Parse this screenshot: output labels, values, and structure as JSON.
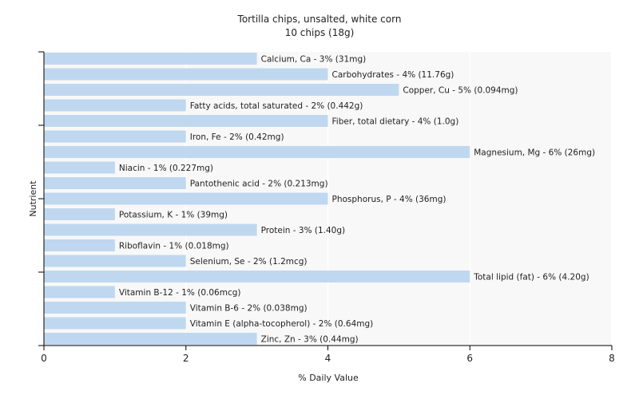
{
  "chart_data": {
    "type": "bar",
    "orientation": "horizontal",
    "title": "Tortilla chips, unsalted, white corn",
    "subtitle": "10 chips (18g)",
    "xlabel": "% Daily Value",
    "ylabel": "Nutrient",
    "xlim": [
      0,
      8
    ],
    "xticks": [
      "0",
      "2",
      "4",
      "6",
      "8"
    ],
    "grid": "vertical",
    "colors": {
      "bar": "#bfd8f0",
      "plot_bg": "#f8f8f8",
      "grid": "#ffffff",
      "axis": "#000000"
    },
    "bars": [
      {
        "category": "Calcium, Ca",
        "value": 3,
        "label": "Calcium, Ca - 3% (31mg)"
      },
      {
        "category": "Carbohydrates",
        "value": 4,
        "label": "Carbohydrates - 4% (11.76g)"
      },
      {
        "category": "Copper, Cu",
        "value": 5,
        "label": "Copper, Cu - 5% (0.094mg)"
      },
      {
        "category": "Fatty acids, total saturated",
        "value": 2,
        "label": "Fatty acids, total saturated - 2% (0.442g)"
      },
      {
        "category": "Fiber, total dietary",
        "value": 4,
        "label": "Fiber, total dietary - 4% (1.0g)"
      },
      {
        "category": "Iron, Fe",
        "value": 2,
        "label": "Iron, Fe - 2% (0.42mg)"
      },
      {
        "category": "Magnesium, Mg",
        "value": 6,
        "label": "Magnesium, Mg - 6% (26mg)"
      },
      {
        "category": "Niacin",
        "value": 1,
        "label": "Niacin - 1% (0.227mg)"
      },
      {
        "category": "Pantothenic acid",
        "value": 2,
        "label": "Pantothenic acid - 2% (0.213mg)"
      },
      {
        "category": "Phosphorus, P",
        "value": 4,
        "label": "Phosphorus, P - 4% (36mg)"
      },
      {
        "category": "Potassium, K",
        "value": 1,
        "label": "Potassium, K - 1% (39mg)"
      },
      {
        "category": "Protein",
        "value": 3,
        "label": "Protein - 3% (1.40g)"
      },
      {
        "category": "Riboflavin",
        "value": 1,
        "label": "Riboflavin - 1% (0.018mg)"
      },
      {
        "category": "Selenium, Se",
        "value": 2,
        "label": "Selenium, Se - 2% (1.2mcg)"
      },
      {
        "category": "Total lipid (fat)",
        "value": 6,
        "label": "Total lipid (fat) - 6% (4.20g)"
      },
      {
        "category": "Vitamin B-12",
        "value": 1,
        "label": "Vitamin B-12 - 1% (0.06mcg)"
      },
      {
        "category": "Vitamin B-6",
        "value": 2,
        "label": "Vitamin B-6 - 2% (0.038mg)"
      },
      {
        "category": "Vitamin E (alpha-tocopherol)",
        "value": 2,
        "label": "Vitamin E (alpha-tocopherol) - 2% (0.64mg)"
      },
      {
        "category": "Zinc, Zn",
        "value": 3,
        "label": "Zinc, Zn - 3% (0.44mg)"
      }
    ]
  }
}
